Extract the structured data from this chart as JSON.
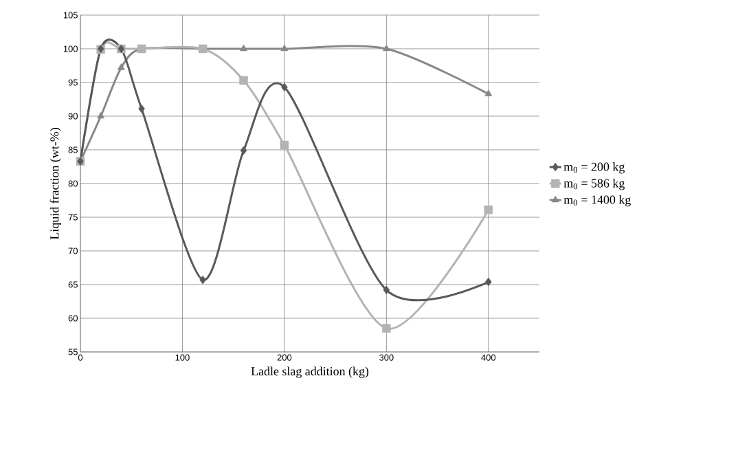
{
  "chart_data": {
    "type": "line",
    "xlabel": "Ladle slag addition (kg)",
    "ylabel": "Liquid fraction (wt-%)",
    "x": [
      0,
      20,
      40,
      60,
      120,
      160,
      200,
      300,
      400
    ],
    "series": [
      {
        "name": "m$_{0}$ = 200 kg",
        "color": "#595959",
        "marker": "diamond",
        "values": [
          83.3,
          100,
          100,
          91.1,
          65.7,
          84.9,
          94.3,
          64.2,
          65.4
        ]
      },
      {
        "name": "m$_{0}$ = 586 kg",
        "color": "#b3b3b3",
        "marker": "square",
        "values": [
          83.3,
          99.9,
          100,
          100,
          100,
          95.3,
          85.7,
          58.5,
          76.1
        ]
      },
      {
        "name": "m$_{0}$ = 1400 kg",
        "color": "#878787",
        "marker": "triangle",
        "values": [
          83.3,
          90,
          97.2,
          100,
          100,
          100,
          100,
          100,
          93.3
        ]
      }
    ],
    "xlim": [
      0,
      450
    ],
    "ylim": [
      55,
      105
    ],
    "xticks": [
      0,
      100,
      200,
      300,
      400
    ],
    "yticks": [
      55,
      60,
      65,
      70,
      75,
      80,
      85,
      90,
      95,
      100,
      105
    ],
    "grid": true,
    "legend": "right",
    "line_style": "solid"
  }
}
